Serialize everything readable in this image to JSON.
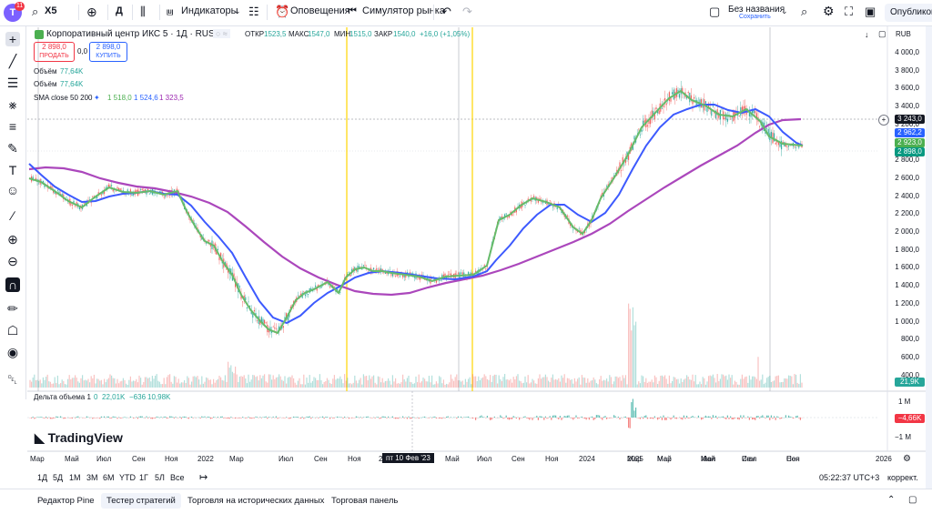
{
  "topbar": {
    "avatar_letter": "T",
    "avatar_badge": "11",
    "symbol": "X5",
    "interval": "Д",
    "indicators_label": "Индикаторы",
    "alerts_label": "Оповещения",
    "replay_label": "Симулятор рынка",
    "layout_name": "Без названия",
    "layout_status": "Сохранить",
    "publish_label": "Опубликовать"
  },
  "header": {
    "instrument": "Корпоративный центр ИКС 5 · 1Д · RUS",
    "open_label": "ОТКР",
    "open": "1523,5",
    "high_label": "МАКС",
    "high": "1547,0",
    "low_label": "МИН",
    "low": "1515,0",
    "close_label": "ЗАКР",
    "close": "1540,0",
    "change": "+16,0 (+1,05%)",
    "sell_price": "2 898,0",
    "sell_label": "ПРОДАТЬ",
    "spread": "0,0",
    "buy_price": "2 898,0",
    "buy_label": "КУПИТЬ",
    "currency": "RUB"
  },
  "indicators": {
    "vol1_label": "Объём",
    "vol1_value": "77,64K",
    "vol2_label": "Объём",
    "vol2_value": "77,64K",
    "sma_label": "SMA close 50 200",
    "sma_v1": "1 518,0",
    "sma_v2": "1 524,6",
    "sma_v3": "1 323,5",
    "delta_label": "Дельта объема 1",
    "delta_v1": "0",
    "delta_v2": "22,01K",
    "delta_v3": "−636",
    "delta_v4": "10,98K"
  },
  "price_axis": [
    "4 000,0",
    "3 800,0",
    "3 600,0",
    "3 400,0",
    "3 200,0",
    "3 000,0",
    "2 800,0",
    "2 600,0",
    "2 400,0",
    "2 200,0",
    "2 000,0",
    "1 800,0",
    "1 600,0",
    "1 400,0",
    "1 200,0",
    "1 000,0",
    "800,0",
    "600,0",
    "400,0"
  ],
  "price_badges": {
    "crosshair": "3 243,0",
    "sma_blue": "2 962,2",
    "sma_green": "2 923,0",
    "last": "2 898,0",
    "volume": "21,9K",
    "delta": "−4,66K",
    "delta_axis_top": "1 M",
    "delta_axis_bottom": "−1 M"
  },
  "colors": {
    "candle_up": "#26a69a",
    "candle_down": "#ef5350",
    "sma_green": "#4caf50",
    "sma_blue": "#2962ff",
    "sma_purple": "#9c27b0",
    "marker_yellow": "#ffd600",
    "badge_last": "#089981",
    "badge_red": "#f23645"
  },
  "time_axis": [
    "Мар",
    "Май",
    "Июл",
    "Сен",
    "Ноя",
    "2022",
    "Мар",
    "Июл",
    "Сен",
    "Ноя",
    "2",
    "Май",
    "Июл",
    "Сен",
    "Ноя",
    "2024",
    "Мар",
    "Май",
    "Июл",
    "Сен",
    "Ноя",
    "2025",
    "Мар",
    "Май",
    "Июл",
    "Сен",
    "2026"
  ],
  "time_cursor_label": "пт 10 Фев '23",
  "timeframes": [
    "1Д",
    "5Д",
    "1М",
    "3М",
    "6М",
    "YTD",
    "1Г",
    "5Л",
    "Все"
  ],
  "clock": "05:22:37 UTC+3",
  "adjust_label": "коррект.",
  "bottom_tabs": [
    "Редактор Pine",
    "Тестер стратегий",
    "Торговля на исторических данных",
    "Торговая панель"
  ],
  "watermark": "TradingView"
}
